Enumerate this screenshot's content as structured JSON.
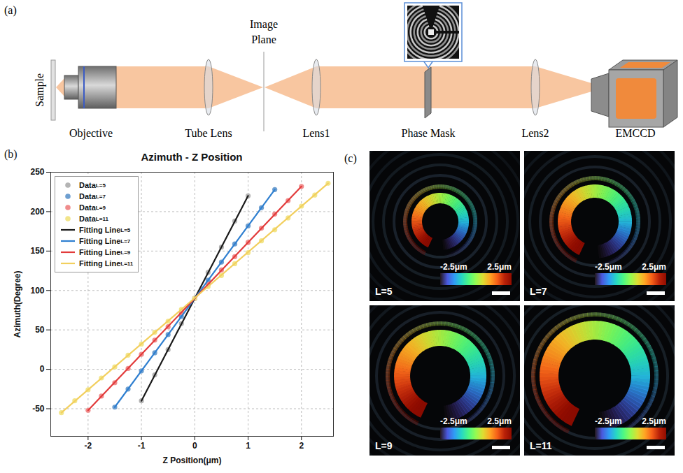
{
  "panel_a": {
    "panel_label": "(a)",
    "labels": {
      "sample": "Sample",
      "objective": "Objective",
      "tube_lens": "Tube Lens",
      "image_plane": "Image Plane",
      "lens1": "Lens1",
      "phase_mask": "Phase Mask",
      "lens2": "Lens2",
      "camera": "EMCCD"
    }
  },
  "chart_data": {
    "type": "scatter",
    "panel_label": "(b)",
    "title": "Azimuth - Z Position",
    "x_label": "Z Position(μm)",
    "y_label": "Azimuth(Degree)",
    "xlim": [
      -2.7,
      2.6
    ],
    "xticks": [
      -2,
      -1,
      0,
      1,
      2
    ],
    "ylim": [
      -85,
      250
    ],
    "yticks": [
      -50,
      0,
      50,
      100,
      150,
      200,
      250
    ],
    "grid": true,
    "legend": "top-left",
    "series": [
      {
        "name": "DataL=5",
        "type": "scatter",
        "marker": "circle",
        "color": "#b4b4b4",
        "x": [
          -1,
          -0.75,
          -0.5,
          -0.25,
          0,
          0.25,
          0.5,
          0.75,
          1
        ],
        "values": [
          -40,
          -7,
          25,
          58,
          90,
          123,
          155,
          188,
          220
        ]
      },
      {
        "name": "DataL=7",
        "type": "scatter",
        "marker": "circle",
        "color": "#6e9fd0",
        "x": [
          -1.5,
          -1.25,
          -1,
          -0.75,
          -0.5,
          -0.25,
          0,
          0.25,
          0.5,
          0.75,
          1,
          1.25,
          1.5
        ],
        "values": [
          -48,
          -25,
          -2,
          21,
          44,
          67,
          90,
          113,
          136,
          159,
          182,
          205,
          228
        ]
      },
      {
        "name": "DataL=9",
        "type": "scatter",
        "marker": "circle",
        "color": "#f08c8c",
        "x": [
          -2,
          -1.75,
          -1.5,
          -1.25,
          -1,
          -0.75,
          -0.5,
          -0.25,
          0,
          0.25,
          0.5,
          0.75,
          1,
          1.25,
          1.5,
          1.75,
          2
        ],
        "values": [
          -52,
          -34,
          -17,
          1,
          19,
          37,
          54,
          72,
          90,
          108,
          126,
          143,
          161,
          179,
          197,
          214,
          232
        ]
      },
      {
        "name": "DataL=11",
        "type": "scatter",
        "marker": "circle",
        "color": "#f2e58a",
        "x": [
          -2.5,
          -2.25,
          -2,
          -1.75,
          -1.5,
          -1.25,
          -1,
          -0.75,
          -0.5,
          -0.25,
          0,
          0.25,
          0.5,
          0.75,
          1,
          1.25,
          1.5,
          1.75,
          2,
          2.25,
          2.5
        ],
        "values": [
          -55,
          -40,
          -26,
          -11,
          3,
          18,
          32,
          47,
          61,
          76,
          90,
          105,
          119,
          134,
          148,
          163,
          177,
          192,
          207,
          221,
          236
        ]
      },
      {
        "name": "Fitting LineL=5",
        "type": "line",
        "line_style": "solid",
        "color": "#1a1a1a",
        "x": [
          -1,
          1
        ],
        "values": [
          -40,
          220
        ]
      },
      {
        "name": "Fitting LineL=7",
        "type": "line",
        "line_style": "solid",
        "color": "#2f7fd0",
        "x": [
          -1.5,
          1.5
        ],
        "values": [
          -48,
          228
        ]
      },
      {
        "name": "Fitting LineL=9",
        "type": "line",
        "line_style": "solid",
        "color": "#e23b3b",
        "x": [
          -2,
          2
        ],
        "values": [
          -52,
          232
        ]
      },
      {
        "name": "Fitting LineL=11",
        "type": "line",
        "line_style": "solid",
        "color": "#f2cf5e",
        "x": [
          -2.5,
          2.5
        ],
        "values": [
          -55,
          236
        ]
      }
    ]
  },
  "panel_c": {
    "panel_label": "(c)",
    "images": [
      {
        "label": "L=5"
      },
      {
        "label": "L=7"
      },
      {
        "label": "L=9"
      },
      {
        "label": "L=11"
      }
    ],
    "colorbar": {
      "range": [
        -2.5,
        2.5
      ],
      "ticks": [
        {
          "value": -2.5,
          "label": "-2.5μm"
        },
        {
          "value": 2.5,
          "label": "2.5μm"
        }
      ]
    }
  }
}
